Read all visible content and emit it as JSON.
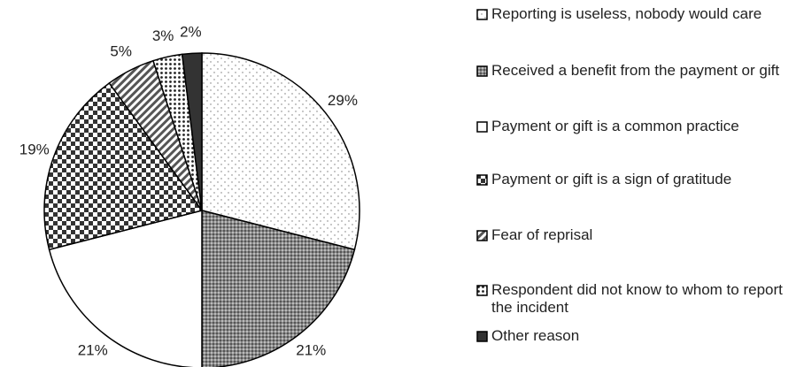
{
  "chart_data": {
    "type": "pie",
    "categories": [
      "Reporting is useless, nobody would care",
      "Received a benefit from the payment or gift",
      "Payment or gift is a common practice",
      "Payment or gift is a sign of gratitude",
      "Fear of reprisal",
      "Respondent did not know to whom to report the incident",
      "Other reason"
    ],
    "values": [
      29,
      21,
      21,
      19,
      5,
      3,
      2
    ],
    "value_labels": [
      "29%",
      "21%",
      "21%",
      "19%",
      "5%",
      "3%",
      "2%"
    ],
    "legend": "right"
  }
}
